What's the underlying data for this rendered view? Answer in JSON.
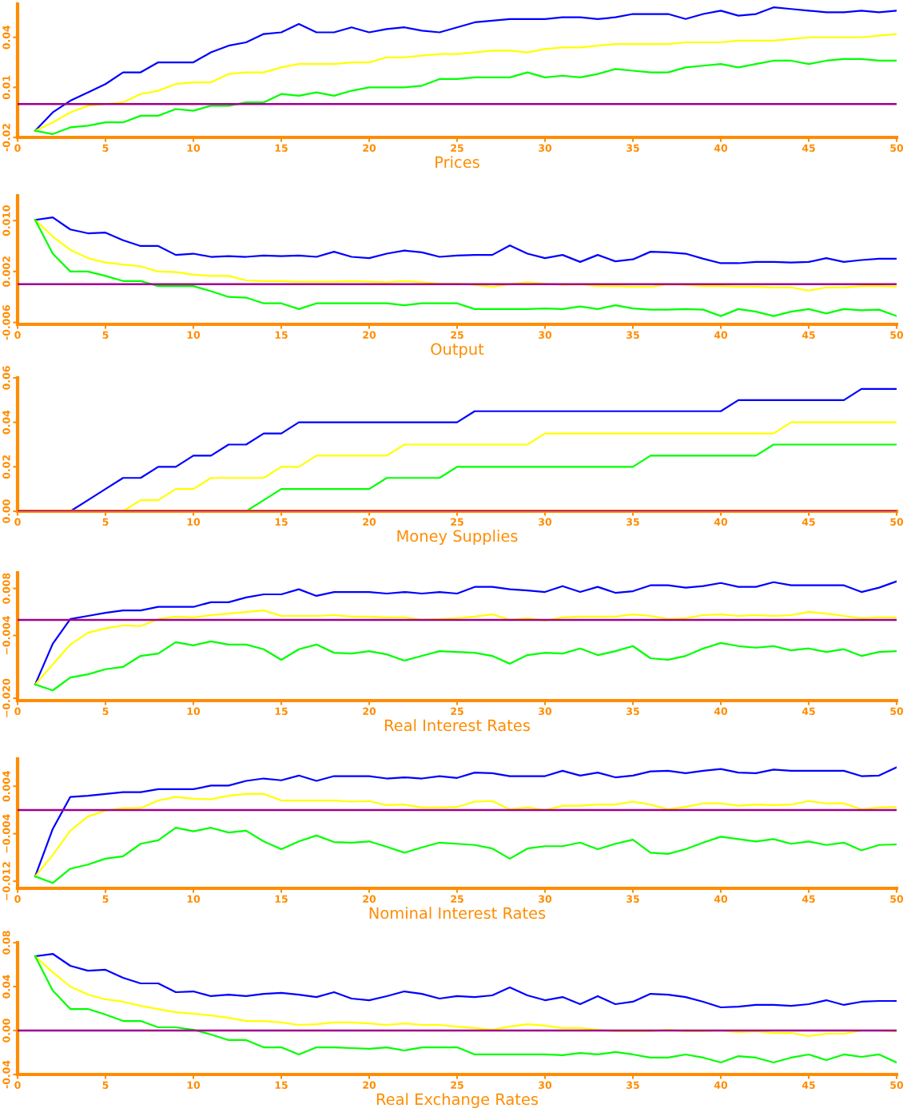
{
  "chart_data": [
    {
      "type": "line",
      "xlabel": "Prices",
      "xlim": [
        0,
        50
      ],
      "xticks": [
        0,
        5,
        10,
        15,
        20,
        25,
        30,
        35,
        40,
        45,
        50
      ],
      "ylim": [
        -0.02,
        0.06
      ],
      "yticks": [
        -0.02,
        0.01,
        0.04
      ],
      "grid": false,
      "legend": false,
      "x": [
        1,
        2,
        3,
        4,
        5,
        6,
        7,
        8,
        9,
        10,
        11,
        12,
        13,
        14,
        15,
        16,
        17,
        18,
        19,
        20,
        21,
        22,
        23,
        24,
        25,
        26,
        27,
        28,
        29,
        30,
        31,
        32,
        33,
        34,
        35,
        36,
        37,
        38,
        39,
        40,
        41,
        42,
        43,
        44,
        45,
        46,
        47,
        48,
        49,
        50
      ],
      "series": [
        {
          "color": "#0000ff",
          "values": [
            -0.016,
            -0.005,
            0.002,
            0.007,
            0.012,
            0.019,
            0.019,
            0.025,
            0.025,
            0.025,
            0.031,
            0.035,
            0.037,
            0.042,
            0.043,
            0.048,
            0.043,
            0.043,
            0.046,
            0.043,
            0.045,
            0.046,
            0.044,
            0.043,
            0.046,
            0.049,
            0.05,
            0.051,
            0.051,
            0.051,
            0.052,
            0.052,
            0.051,
            0.052,
            0.054,
            0.054,
            0.054,
            0.051,
            0.054,
            0.056,
            0.053,
            0.054,
            0.058,
            0.057,
            0.056,
            0.055,
            0.055,
            0.056,
            0.055,
            0.056
          ]
        },
        {
          "color": "#ffff00",
          "values": [
            -0.016,
            -0.011,
            -0.005,
            -0.001,
            0.0,
            0.001,
            0.006,
            0.008,
            0.012,
            0.013,
            0.013,
            0.018,
            0.019,
            0.019,
            0.022,
            0.024,
            0.024,
            0.024,
            0.025,
            0.025,
            0.028,
            0.028,
            0.029,
            0.03,
            0.03,
            0.031,
            0.032,
            0.032,
            0.031,
            0.033,
            0.034,
            0.034,
            0.035,
            0.036,
            0.036,
            0.036,
            0.036,
            0.037,
            0.037,
            0.037,
            0.038,
            0.038,
            0.038,
            0.039,
            0.04,
            0.04,
            0.04,
            0.04,
            0.041,
            0.042
          ]
        },
        {
          "color": "#00ff00",
          "values": [
            -0.016,
            -0.018,
            -0.014,
            -0.013,
            -0.011,
            -0.011,
            -0.007,
            -0.007,
            -0.003,
            -0.004,
            -0.001,
            -0.001,
            0.001,
            0.001,
            0.006,
            0.005,
            0.007,
            0.005,
            0.008,
            0.01,
            0.01,
            0.01,
            0.011,
            0.015,
            0.015,
            0.016,
            0.016,
            0.016,
            0.019,
            0.016,
            0.017,
            0.016,
            0.018,
            0.021,
            0.02,
            0.019,
            0.019,
            0.022,
            0.023,
            0.024,
            0.022,
            0.024,
            0.026,
            0.026,
            0.024,
            0.026,
            0.027,
            0.027,
            0.026,
            0.026
          ]
        }
      ],
      "ref_lines": [
        {
          "axis": "y",
          "value": 0,
          "color": "#a0008c"
        }
      ]
    },
    {
      "type": "line",
      "xlabel": "Output",
      "xlim": [
        0,
        50
      ],
      "xticks": [
        0,
        5,
        10,
        15,
        20,
        25,
        30,
        35,
        40,
        45,
        50
      ],
      "ylim": [
        -0.0063,
        0.0139
      ],
      "yticks": [
        -0.006,
        0.002,
        {
          "value": 0.01,
          "label": "0.010"
        }
      ],
      "grid": false,
      "legend": false,
      "x": [
        1,
        2,
        3,
        4,
        5,
        6,
        7,
        8,
        9,
        10,
        11,
        12,
        13,
        14,
        15,
        16,
        17,
        18,
        19,
        20,
        21,
        22,
        23,
        24,
        25,
        26,
        27,
        28,
        29,
        30,
        31,
        32,
        33,
        34,
        35,
        36,
        37,
        38,
        39,
        40,
        41,
        42,
        43,
        44,
        45,
        46,
        47,
        48,
        49,
        50
      ],
      "series": [
        {
          "color": "#0000ff",
          "values": [
            0.0101,
            0.0105,
            0.0086,
            0.008,
            0.0081,
            0.0069,
            0.006,
            0.006,
            0.0046,
            0.0048,
            0.0043,
            0.0044,
            0.0043,
            0.0045,
            0.0044,
            0.0045,
            0.0043,
            0.0051,
            0.0043,
            0.0041,
            0.0048,
            0.0053,
            0.005,
            0.0043,
            0.0045,
            0.0046,
            0.0046,
            0.0061,
            0.0048,
            0.0041,
            0.0046,
            0.0035,
            0.0046,
            0.0036,
            0.0039,
            0.0051,
            0.005,
            0.0048,
            0.004,
            0.0033,
            0.0033,
            0.0035,
            0.0035,
            0.0034,
            0.0035,
            0.0041,
            0.0035,
            0.0038,
            0.004,
            0.004
          ]
        },
        {
          "color": "#ffff00",
          "values": [
            0.0101,
            0.0075,
            0.0054,
            0.0041,
            0.0034,
            0.0031,
            0.0028,
            0.002,
            0.0019,
            0.0015,
            0.0013,
            0.0013,
            0.0006,
            0.0005,
            0.0005,
            0.0004,
            0.0004,
            0.0004,
            0.0005,
            0.0004,
            0.0003,
            0.0005,
            0.0003,
            0.0001,
            0.0001,
            -0.0001,
            -0.0004,
            0.0,
            0.0003,
            0.0001,
            -0.0001,
            0.0,
            -0.0003,
            -0.0003,
            -0.0004,
            -0.0004,
            0.0,
            -0.0001,
            -0.0003,
            -0.0003,
            -0.0004,
            -0.0004,
            -0.0005,
            -0.0005,
            -0.001,
            -0.0005,
            -0.0005,
            -0.0003,
            -0.0003,
            -0.0004
          ]
        },
        {
          "color": "#00ff00",
          "values": [
            0.0101,
            0.0048,
            0.002,
            0.002,
            0.0013,
            0.0005,
            0.0005,
            -0.0003,
            -0.0003,
            -0.0003,
            -0.0011,
            -0.002,
            -0.0021,
            -0.003,
            -0.003,
            -0.0039,
            -0.003,
            -0.003,
            -0.003,
            -0.003,
            -0.003,
            -0.0033,
            -0.003,
            -0.003,
            -0.003,
            -0.0039,
            -0.0039,
            -0.0039,
            -0.0039,
            -0.0038,
            -0.0039,
            -0.0035,
            -0.0039,
            -0.0033,
            -0.0038,
            -0.004,
            -0.004,
            -0.0039,
            -0.004,
            -0.005,
            -0.0039,
            -0.0043,
            -0.005,
            -0.0043,
            -0.0039,
            -0.0046,
            -0.0039,
            -0.0041,
            -0.004,
            -0.005
          ]
        }
      ],
      "ref_lines": [
        {
          "axis": "y",
          "value": 0,
          "color": "#a0008c"
        }
      ]
    },
    {
      "type": "line",
      "xlabel": "Money Supplies",
      "xlim": [
        0,
        50
      ],
      "xticks": [
        0,
        5,
        10,
        15,
        20,
        25,
        30,
        35,
        40,
        45,
        50
      ],
      "ylim": [
        0,
        0.06
      ],
      "yticks": [
        {
          "value": 0,
          "label": "0.00"
        },
        0.02,
        0.04,
        0.06
      ],
      "grid": false,
      "legend": false,
      "series": [
        {
          "color": "#0000ff",
          "x": [
            3,
            4,
            5,
            6,
            7,
            8,
            9,
            10,
            11,
            12,
            13,
            14,
            15,
            16,
            17,
            18,
            19,
            20,
            21,
            22,
            23,
            24,
            25,
            26,
            27,
            28,
            29,
            30,
            31,
            32,
            33,
            34,
            35,
            36,
            37,
            38,
            39,
            40,
            41,
            42,
            43,
            44,
            45,
            46,
            47,
            48,
            49,
            50
          ],
          "values": [
            0,
            0.005,
            0.01,
            0.015,
            0.015,
            0.02,
            0.02,
            0.025,
            0.025,
            0.03,
            0.03,
            0.035,
            0.035,
            0.04,
            0.04,
            0.04,
            0.04,
            0.04,
            0.04,
            0.04,
            0.04,
            0.04,
            0.04,
            0.045,
            0.045,
            0.045,
            0.045,
            0.045,
            0.045,
            0.045,
            0.045,
            0.045,
            0.045,
            0.045,
            0.045,
            0.045,
            0.045,
            0.045,
            0.05,
            0.05,
            0.05,
            0.05,
            0.05,
            0.05,
            0.05,
            0.055,
            0.055,
            0.055
          ]
        },
        {
          "color": "#ffff00",
          "x": [
            6,
            7,
            8,
            9,
            10,
            11,
            12,
            13,
            14,
            15,
            16,
            17,
            18,
            19,
            20,
            21,
            22,
            23,
            24,
            25,
            26,
            27,
            28,
            29,
            30,
            31,
            32,
            33,
            34,
            35,
            36,
            37,
            38,
            39,
            40,
            41,
            42,
            43,
            44,
            45,
            46,
            47,
            48,
            49,
            50
          ],
          "values": [
            0,
            0.005,
            0.005,
            0.01,
            0.01,
            0.015,
            0.015,
            0.015,
            0.015,
            0.02,
            0.02,
            0.025,
            0.025,
            0.025,
            0.025,
            0.025,
            0.03,
            0.03,
            0.03,
            0.03,
            0.03,
            0.03,
            0.03,
            0.03,
            0.035,
            0.035,
            0.035,
            0.035,
            0.035,
            0.035,
            0.035,
            0.035,
            0.035,
            0.035,
            0.035,
            0.035,
            0.035,
            0.035,
            0.04,
            0.04,
            0.04,
            0.04,
            0.04,
            0.04,
            0.04
          ]
        },
        {
          "color": "#00ff00",
          "x": [
            13,
            14,
            15,
            16,
            17,
            18,
            19,
            20,
            21,
            22,
            23,
            24,
            25,
            26,
            27,
            28,
            29,
            30,
            31,
            32,
            33,
            34,
            35,
            36,
            37,
            38,
            39,
            40,
            41,
            42,
            43,
            44,
            45,
            46,
            47,
            48,
            49,
            50
          ],
          "values": [
            0,
            0.005,
            0.01,
            0.01,
            0.01,
            0.01,
            0.01,
            0.01,
            0.015,
            0.015,
            0.015,
            0.015,
            0.02,
            0.02,
            0.02,
            0.02,
            0.02,
            0.02,
            0.02,
            0.02,
            0.02,
            0.02,
            0.02,
            0.025,
            0.025,
            0.025,
            0.025,
            0.025,
            0.025,
            0.025,
            0.03,
            0.03,
            0.03,
            0.03,
            0.03,
            0.03,
            0.03,
            0.03
          ]
        }
      ],
      "ref_lines": [
        {
          "axis": "y",
          "value": 0,
          "color": "#a0008c"
        }
      ]
    },
    {
      "type": "line",
      "xlabel": "Real Interest Rates",
      "xlim": [
        0,
        50
      ],
      "xticks": [
        0,
        5,
        10,
        15,
        20,
        25,
        30,
        35,
        40,
        45,
        50
      ],
      "ylim": [
        -0.0206,
        0.012
      ],
      "yticks": [
        {
          "value": -0.02,
          "label": "−0.020"
        },
        {
          "value": -0.004,
          "label": "−0.004"
        },
        {
          "value": 0.008,
          "label": "0.008"
        }
      ],
      "grid": false,
      "legend": false,
      "x": [
        1,
        2,
        3,
        4,
        5,
        6,
        7,
        8,
        9,
        10,
        11,
        12,
        13,
        14,
        15,
        16,
        17,
        18,
        19,
        20,
        21,
        22,
        23,
        24,
        25,
        26,
        27,
        28,
        29,
        30,
        31,
        32,
        33,
        34,
        35,
        36,
        37,
        38,
        39,
        40,
        41,
        42,
        43,
        44,
        45,
        46,
        47,
        48,
        49,
        50
      ],
      "series": [
        {
          "color": "#0000ff",
          "values": [
            -0.0165,
            -0.0061,
            0.0002,
            0.001,
            0.0018,
            0.0024,
            0.0024,
            0.0033,
            0.0033,
            0.0033,
            0.0045,
            0.0045,
            0.0057,
            0.0065,
            0.0065,
            0.0078,
            0.0061,
            0.0071,
            0.0071,
            0.0071,
            0.0067,
            0.0071,
            0.0067,
            0.0071,
            0.0067,
            0.0084,
            0.0084,
            0.0078,
            0.0075,
            0.0071,
            0.0086,
            0.0071,
            0.0084,
            0.0069,
            0.0073,
            0.0088,
            0.0088,
            0.0082,
            0.0086,
            0.0094,
            0.0084,
            0.0084,
            0.0096,
            0.0088,
            0.0088,
            0.0088,
            0.0088,
            0.0071,
            0.0082,
            0.0098
          ]
        },
        {
          "color": "#ffff00",
          "values": [
            -0.0165,
            -0.0114,
            -0.0063,
            -0.0033,
            -0.0022,
            -0.0014,
            -0.0016,
            0.0002,
            0.0008,
            0.0006,
            0.0012,
            0.0016,
            0.002,
            0.0024,
            0.001,
            0.001,
            0.001,
            0.0012,
            0.0008,
            0.0008,
            0.0006,
            0.0006,
            0.0,
            0.0002,
            0.0004,
            0.0008,
            0.0014,
            0.0,
            0.0004,
            -0.0002,
            0.0006,
            0.0008,
            0.0008,
            0.0008,
            0.0014,
            0.001,
            0.0002,
            0.0004,
            0.0012,
            0.0014,
            0.001,
            0.0012,
            0.001,
            0.0012,
            0.002,
            0.0016,
            0.001,
            0.0004,
            0.0006,
            0.0006
          ]
        },
        {
          "color": "#00ff00",
          "values": [
            -0.0165,
            -0.018,
            -0.0147,
            -0.0139,
            -0.0126,
            -0.012,
            -0.0092,
            -0.0086,
            -0.0057,
            -0.0065,
            -0.0055,
            -0.0063,
            -0.0063,
            -0.0075,
            -0.0102,
            -0.0075,
            -0.0063,
            -0.0084,
            -0.0086,
            -0.008,
            -0.0088,
            -0.0104,
            -0.0092,
            -0.008,
            -0.0082,
            -0.0084,
            -0.0092,
            -0.0112,
            -0.009,
            -0.0084,
            -0.0086,
            -0.0073,
            -0.009,
            -0.008,
            -0.0067,
            -0.0098,
            -0.0102,
            -0.0092,
            -0.0073,
            -0.0059,
            -0.0067,
            -0.0071,
            -0.0067,
            -0.0078,
            -0.0073,
            -0.0082,
            -0.0075,
            -0.0092,
            -0.0082,
            -0.008
          ]
        }
      ],
      "ref_lines": [
        {
          "axis": "y",
          "value": 0,
          "color": "#a0008c"
        }
      ]
    },
    {
      "type": "line",
      "xlabel": "Nominal Interest Rates",
      "xlim": [
        0,
        50
      ],
      "xticks": [
        0,
        5,
        10,
        15,
        20,
        25,
        30,
        35,
        40,
        45,
        50
      ],
      "ylim": [
        -0.0132,
        0.0086
      ],
      "yticks": [
        {
          "value": -0.012,
          "label": "−0.012"
        },
        {
          "value": -0.004,
          "label": "−0.004"
        },
        0.004
      ],
      "grid": false,
      "legend": false,
      "x": [
        1,
        2,
        3,
        4,
        5,
        6,
        7,
        8,
        9,
        10,
        11,
        12,
        13,
        14,
        15,
        16,
        17,
        18,
        19,
        20,
        21,
        22,
        23,
        24,
        25,
        26,
        27,
        28,
        29,
        30,
        31,
        32,
        33,
        34,
        35,
        36,
        37,
        38,
        39,
        40,
        41,
        42,
        43,
        44,
        45,
        46,
        47,
        48,
        49,
        50
      ],
      "series": [
        {
          "color": "#0000ff",
          "values": [
            -0.0112,
            -0.0032,
            0.0022,
            0.0024,
            0.0027,
            0.003,
            0.003,
            0.0035,
            0.0035,
            0.0035,
            0.0041,
            0.0041,
            0.0049,
            0.0053,
            0.005,
            0.0058,
            0.0049,
            0.0057,
            0.0057,
            0.0057,
            0.0053,
            0.0055,
            0.0053,
            0.0057,
            0.0054,
            0.0063,
            0.0062,
            0.0057,
            0.0057,
            0.0057,
            0.0066,
            0.0058,
            0.0063,
            0.0055,
            0.0058,
            0.0065,
            0.0066,
            0.0062,
            0.0066,
            0.0069,
            0.0063,
            0.0062,
            0.0068,
            0.0066,
            0.0066,
            0.0066,
            0.0066,
            0.0057,
            0.0058,
            0.0072
          ]
        },
        {
          "color": "#ffff00",
          "values": [
            -0.0112,
            -0.0076,
            -0.0035,
            -0.0011,
            -0.0001,
            0.0003,
            0.0003,
            0.0016,
            0.0022,
            0.0019,
            0.0018,
            0.0024,
            0.0027,
            0.0027,
            0.0016,
            0.0016,
            0.0016,
            0.0016,
            0.0014,
            0.0015,
            0.0008,
            0.0009,
            0.0004,
            0.0004,
            0.0005,
            0.0014,
            0.0015,
            0.0001,
            0.0004,
            0.0,
            0.0007,
            0.0007,
            0.0009,
            0.0009,
            0.0014,
            0.0009,
            0.0001,
            0.0005,
            0.0011,
            0.0011,
            0.0007,
            0.0009,
            0.0008,
            0.0009,
            0.0015,
            0.0011,
            0.0011,
            0.0001,
            0.0004,
            0.0005
          ]
        },
        {
          "color": "#00ff00",
          "values": [
            -0.0112,
            -0.0123,
            -0.0099,
            -0.0092,
            -0.0082,
            -0.0078,
            -0.0057,
            -0.0051,
            -0.003,
            -0.0036,
            -0.003,
            -0.0038,
            -0.0035,
            -0.0053,
            -0.0066,
            -0.0053,
            -0.0043,
            -0.0054,
            -0.0055,
            -0.0053,
            -0.0062,
            -0.0072,
            -0.0063,
            -0.0055,
            -0.0057,
            -0.0059,
            -0.0065,
            -0.0082,
            -0.0065,
            -0.0061,
            -0.0061,
            -0.0055,
            -0.0066,
            -0.0057,
            -0.005,
            -0.0072,
            -0.0074,
            -0.0066,
            -0.0055,
            -0.0045,
            -0.0049,
            -0.0053,
            -0.0049,
            -0.0057,
            -0.0053,
            -0.0059,
            -0.0055,
            -0.0068,
            -0.0059,
            -0.0058
          ]
        }
      ],
      "ref_lines": [
        {
          "axis": "y",
          "value": 0,
          "color": "#a0008c"
        }
      ]
    },
    {
      "type": "line",
      "xlabel": "Real Exchange Rates",
      "xlim": [
        0,
        50
      ],
      "xticks": [
        0,
        5,
        10,
        15,
        20,
        25,
        30,
        35,
        40,
        45,
        50
      ],
      "ylim": [
        -0.04,
        0.08
      ],
      "yticks": [
        -0.04,
        {
          "value": 0,
          "label": "0.00"
        },
        0.04,
        0.08
      ],
      "grid": false,
      "legend": false,
      "x": [
        1,
        2,
        3,
        4,
        5,
        6,
        7,
        8,
        9,
        10,
        11,
        12,
        13,
        14,
        15,
        16,
        17,
        18,
        19,
        20,
        21,
        22,
        23,
        24,
        25,
        26,
        27,
        28,
        29,
        30,
        31,
        32,
        33,
        34,
        35,
        36,
        37,
        38,
        39,
        40,
        41,
        42,
        43,
        44,
        45,
        46,
        47,
        48,
        49,
        50
      ],
      "series": [
        {
          "color": "#0000ff",
          "values": [
            0.0676,
            0.0698,
            0.0589,
            0.0545,
            0.0553,
            0.048,
            0.0429,
            0.0429,
            0.0349,
            0.0356,
            0.0313,
            0.0327,
            0.0313,
            0.0334,
            0.0342,
            0.0327,
            0.0305,
            0.0349,
            0.0291,
            0.0276,
            0.0313,
            0.0356,
            0.0334,
            0.0291,
            0.0313,
            0.0305,
            0.032,
            0.0393,
            0.032,
            0.0276,
            0.0305,
            0.024,
            0.0313,
            0.024,
            0.0262,
            0.0334,
            0.0327,
            0.0305,
            0.0262,
            0.0211,
            0.0218,
            0.0233,
            0.0233,
            0.0225,
            0.024,
            0.0276,
            0.0233,
            0.0262,
            0.0269,
            0.0269
          ]
        },
        {
          "color": "#ffff00",
          "values": [
            0.0676,
            0.053,
            0.04,
            0.0327,
            0.0284,
            0.0262,
            0.0225,
            0.0196,
            0.0167,
            0.0153,
            0.0138,
            0.0116,
            0.0087,
            0.0087,
            0.0073,
            0.0051,
            0.0058,
            0.0073,
            0.0073,
            0.0065,
            0.0051,
            0.0065,
            0.0051,
            0.0051,
            0.0036,
            0.0022,
            0.0007,
            0.0036,
            0.0058,
            0.0044,
            0.0022,
            0.0022,
            0.0007,
            -0.0007,
            -0.0007,
            -0.0007,
            0.0007,
            -0.0007,
            -0.0007,
            0.0,
            -0.0015,
            -0.0007,
            -0.0022,
            -0.0022,
            -0.0051,
            -0.0029,
            -0.0029,
            0.0,
            0.0,
            -0.0007
          ]
        },
        {
          "color": "#00ff00",
          "values": [
            0.0676,
            0.0364,
            0.0196,
            0.0196,
            0.0145,
            0.0087,
            0.0087,
            0.0029,
            0.0029,
            0.0007,
            -0.0036,
            -0.0087,
            -0.0087,
            -0.0153,
            -0.0153,
            -0.0218,
            -0.0153,
            -0.0153,
            -0.016,
            -0.0167,
            -0.0153,
            -0.0182,
            -0.0153,
            -0.0153,
            -0.0153,
            -0.0218,
            -0.0218,
            -0.0218,
            -0.0218,
            -0.0218,
            -0.0225,
            -0.0204,
            -0.0218,
            -0.0196,
            -0.0218,
            -0.0247,
            -0.0247,
            -0.0218,
            -0.0247,
            -0.0291,
            -0.0233,
            -0.0247,
            -0.0291,
            -0.0247,
            -0.0218,
            -0.0269,
            -0.0218,
            -0.024,
            -0.0218,
            -0.0291
          ]
        }
      ],
      "ref_lines": [
        {
          "axis": "y",
          "value": 0,
          "color": "#a0008c"
        }
      ]
    }
  ]
}
